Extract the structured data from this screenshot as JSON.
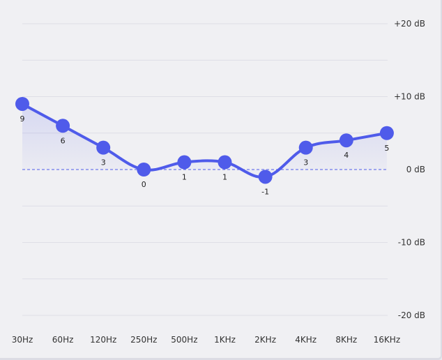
{
  "chart_data": {
    "type": "line",
    "categories": [
      "30Hz",
      "60Hz",
      "120Hz",
      "250Hz",
      "500Hz",
      "1KHz",
      "2KHz",
      "4KHz",
      "8KHz",
      "16KHz"
    ],
    "series": [
      {
        "values": [
          9,
          6,
          3,
          0,
          1,
          1,
          -1,
          3,
          4,
          5
        ]
      }
    ],
    "y_ticks": [
      {
        "value": 20,
        "label": "+20 dB"
      },
      {
        "value": 10,
        "label": "+10 dB"
      },
      {
        "value": 0,
        "label": "0 dB"
      },
      {
        "value": -10,
        "label": "-10 dB"
      },
      {
        "value": -20,
        "label": "-20 dB"
      }
    ],
    "ylim": [
      -20,
      20
    ],
    "grid": true,
    "zero_line": "dashed",
    "smooth": true,
    "colors": {
      "line": "#4f5bea",
      "point": "#4f5bea",
      "fill": "#4f5bea",
      "grid": "#dedee6",
      "zero_line": "#4f5bea"
    }
  }
}
